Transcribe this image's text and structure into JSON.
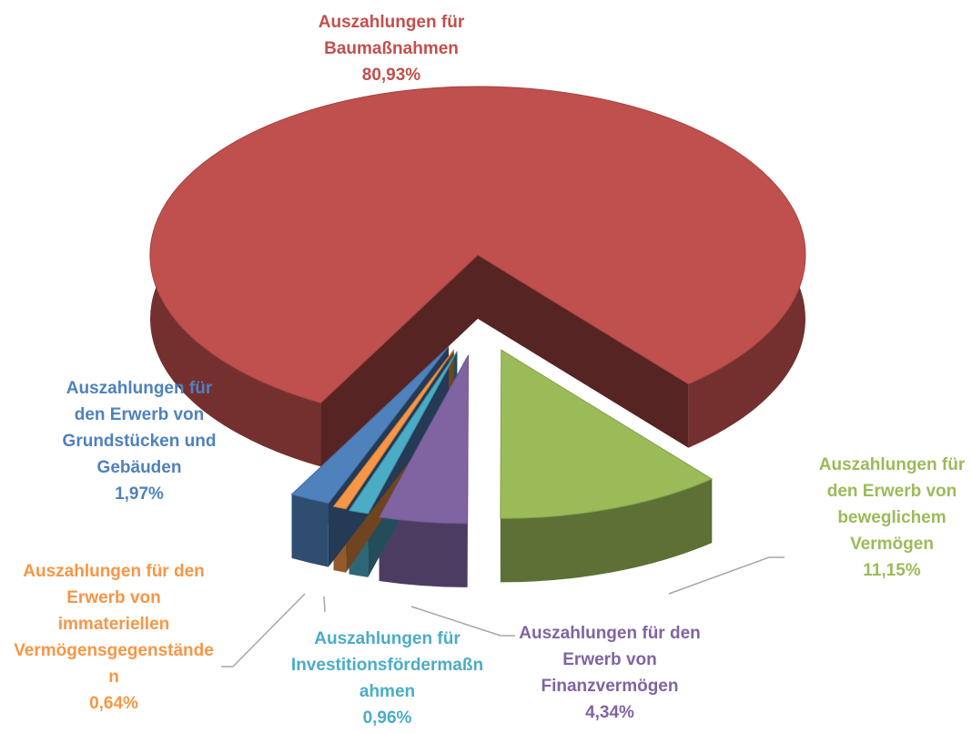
{
  "chart_data": {
    "type": "pie",
    "categories": [
      "Auszahlungen für den Erwerb von beweglichem Vermögen",
      "Auszahlungen für den Erwerb von Finanzvermögen",
      "Auszahlungen für Investitionsfördermaßnahmen",
      "Auszahlungen für den Erwerb von immateriellen Vermögensgegenständen",
      "Auszahlungen für den Erwerb von Grundstücken und Gebäuden",
      "Auszahlungen für Baumaßnahmen"
    ],
    "values": [
      11.15,
      4.34,
      0.96,
      0.64,
      1.97,
      80.93
    ],
    "value_labels": [
      "11,15%",
      "4,34%",
      "0,96%",
      "0,64%",
      "1,97%",
      "80,93%"
    ],
    "colors": [
      "#9bbb59",
      "#8064a2",
      "#4bacc6",
      "#f79646",
      "#4f81bd",
      "#c0504d"
    ]
  }
}
